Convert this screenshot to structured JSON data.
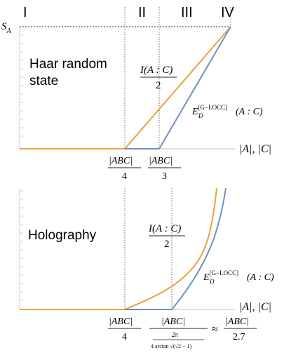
{
  "top_panel": {
    "regions": [
      "I",
      "II",
      "III",
      "IV"
    ],
    "y_label_base": "S",
    "y_label_sub": "A",
    "title_line1": "Haar random",
    "title_line2": "state",
    "orange_label": "I(A : C)",
    "orange_label_den": "2",
    "blue_label_base": "E",
    "blue_label_sub": "D",
    "blue_label_sup": "[G−LOCC]",
    "blue_label_arg": "(A : C)",
    "x_axis_label": "|A|, |C|",
    "tick1_num": "|ABC|",
    "tick1_den": "4",
    "tick2_num": "|ABC|",
    "tick2_den": "3"
  },
  "bottom_panel": {
    "title": "Holography",
    "orange_label": "I(A : C)",
    "orange_label_den": "2",
    "blue_label_base": "E",
    "blue_label_sub": "D",
    "blue_label_sup": "[G−LOCC]",
    "blue_label_arg": "(A : C)",
    "x_axis_label": "|A|, |C|",
    "tick1_num": "|ABC|",
    "tick1_den": "4",
    "tick2_num": "|ABC|",
    "tick2_den_top": "2π",
    "tick2_den_bottom": "4 arctan √(√2 − 1)",
    "approx_symbol": "≈",
    "approx_num": "|ABC|",
    "approx_den": "2.7"
  },
  "colors": {
    "orange": "#e8a33a",
    "blue": "#6f8fbf",
    "axis": "#c9c9c9",
    "dotted": "#555555"
  },
  "chart_data": [
    {
      "type": "line",
      "title": "Haar random state",
      "xlabel": "|A|, |C|",
      "ylabel": "S_A",
      "x_units": "fraction of |ABC|",
      "series": [
        {
          "name": "I(A : C)/2",
          "x": [
            0,
            0.25,
            0.5
          ],
          "y": [
            0,
            0,
            1
          ]
        },
        {
          "name": "E_D^[G−LOCC](A : C)",
          "x": [
            0,
            0.3333,
            0.5
          ],
          "y": [
            0,
            0,
            1
          ]
        }
      ]
    },
    {
      "type": "line",
      "title": "Holography",
      "xlabel": "|A|, |C|",
      "series": [
        {
          "name": "I(A : C)/2",
          "x": [
            0,
            0.25,
            0.5
          ],
          "y": [
            0,
            0,
            1
          ]
        },
        {
          "name": "E_D^[G−LOCC](A : C)",
          "x": [
            0,
            0.37,
            0.5
          ],
          "y": [
            0,
            0,
            1
          ]
        }
      ]
    }
  ]
}
